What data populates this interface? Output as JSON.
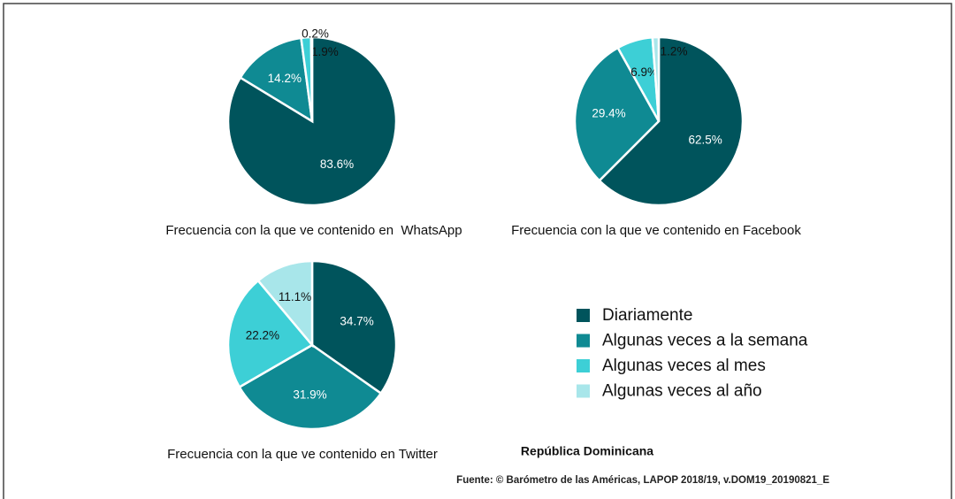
{
  "chart_data": [
    {
      "type": "pie",
      "title": "Frecuencia con la que ve contenido en  WhatsApp",
      "values": [
        83.6,
        14.2,
        1.9,
        0.2
      ],
      "value_labels": [
        "83.6%",
        "14.2%",
        "1.9%",
        "0.2%"
      ]
    },
    {
      "type": "pie",
      "title": "Frecuencia con la que ve contenido en Facebook",
      "values": [
        62.5,
        29.4,
        6.9,
        1.2
      ],
      "value_labels": [
        "62.5%",
        "29.4%",
        "6.9%",
        "1.2%"
      ]
    },
    {
      "type": "pie",
      "title": "Frecuencia con la que ve contenido en Twitter",
      "values": [
        34.7,
        31.9,
        22.2,
        11.1
      ],
      "value_labels": [
        "34.7%",
        "31.9%",
        "22.2%",
        "11.1%"
      ]
    }
  ],
  "legend": {
    "categories": [
      "Diariamente",
      "Algunas veces a la semana",
      "Algunas veces al mes",
      "Algunas veces al año"
    ],
    "colors": [
      "#00545c",
      "#0f8a93",
      "#3dcfd6",
      "#a8e6ea"
    ]
  },
  "note": "República Dominicana",
  "source": "Fuente: © Barómetro de las Américas, LAPOP 2018/19, v.DOM19_20190821_E"
}
